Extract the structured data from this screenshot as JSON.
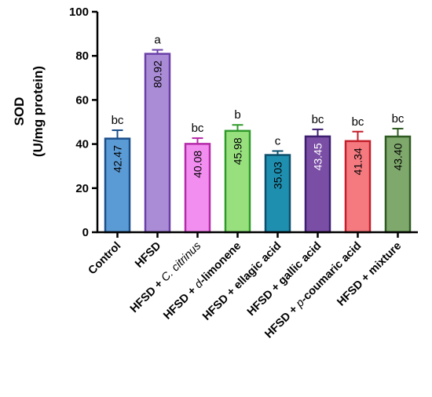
{
  "chart_data": {
    "type": "bar",
    "ylabel_line1": "SOD",
    "ylabel_line2": "(U/mg protein)",
    "ylim": [
      0,
      100
    ],
    "yticks": [
      0,
      20,
      40,
      60,
      80,
      100
    ],
    "grid": false,
    "legend": "none",
    "categories": [
      {
        "plain": "Control",
        "italic": "",
        "tail": ""
      },
      {
        "plain": "HFSD",
        "italic": "",
        "tail": ""
      },
      {
        "plain": "HFSD + ",
        "italic": "C. citrinus",
        "tail": ""
      },
      {
        "plain": "HFSD + ",
        "italic": "d",
        "tail": "-limonene"
      },
      {
        "plain": "HFSD + ellagic acid",
        "italic": "",
        "tail": ""
      },
      {
        "plain": "HFSD + gallic acid",
        "italic": "",
        "tail": ""
      },
      {
        "plain": "HFSD + ",
        "italic": "p",
        "tail": "-coumaric acid"
      },
      {
        "plain": "HFSD + mixture",
        "italic": "",
        "tail": ""
      }
    ],
    "values": [
      42.47,
      80.92,
      40.08,
      45.98,
      35.03,
      43.45,
      41.34,
      43.4
    ],
    "value_labels": [
      "42.47",
      "80.92",
      "40.08",
      "45.98",
      "35.03",
      "43.45",
      "41.34",
      "43.40"
    ],
    "errors": [
      3.8,
      1.8,
      2.6,
      2.7,
      1.8,
      3.2,
      4.3,
      3.6
    ],
    "significance": [
      "bc",
      "a",
      "bc",
      "b",
      "c",
      "bc",
      "bc",
      "bc"
    ],
    "colors": {
      "fill": [
        "#5b9bd5",
        "#a98bd6",
        "#f28ef0",
        "#98e07e",
        "#1f8fb0",
        "#7b4ea6",
        "#f47a80",
        "#7fa96c"
      ],
      "stroke": [
        "#1c4f8a",
        "#6a3fa8",
        "#b52aa8",
        "#2f9a2a",
        "#0b4f6b",
        "#3d1f70",
        "#c41e2a",
        "#2f5a22"
      ],
      "label_text": [
        "#000000",
        "#000000",
        "#000000",
        "#000000",
        "#000000",
        "#ffffff",
        "#000000",
        "#000000"
      ]
    }
  }
}
